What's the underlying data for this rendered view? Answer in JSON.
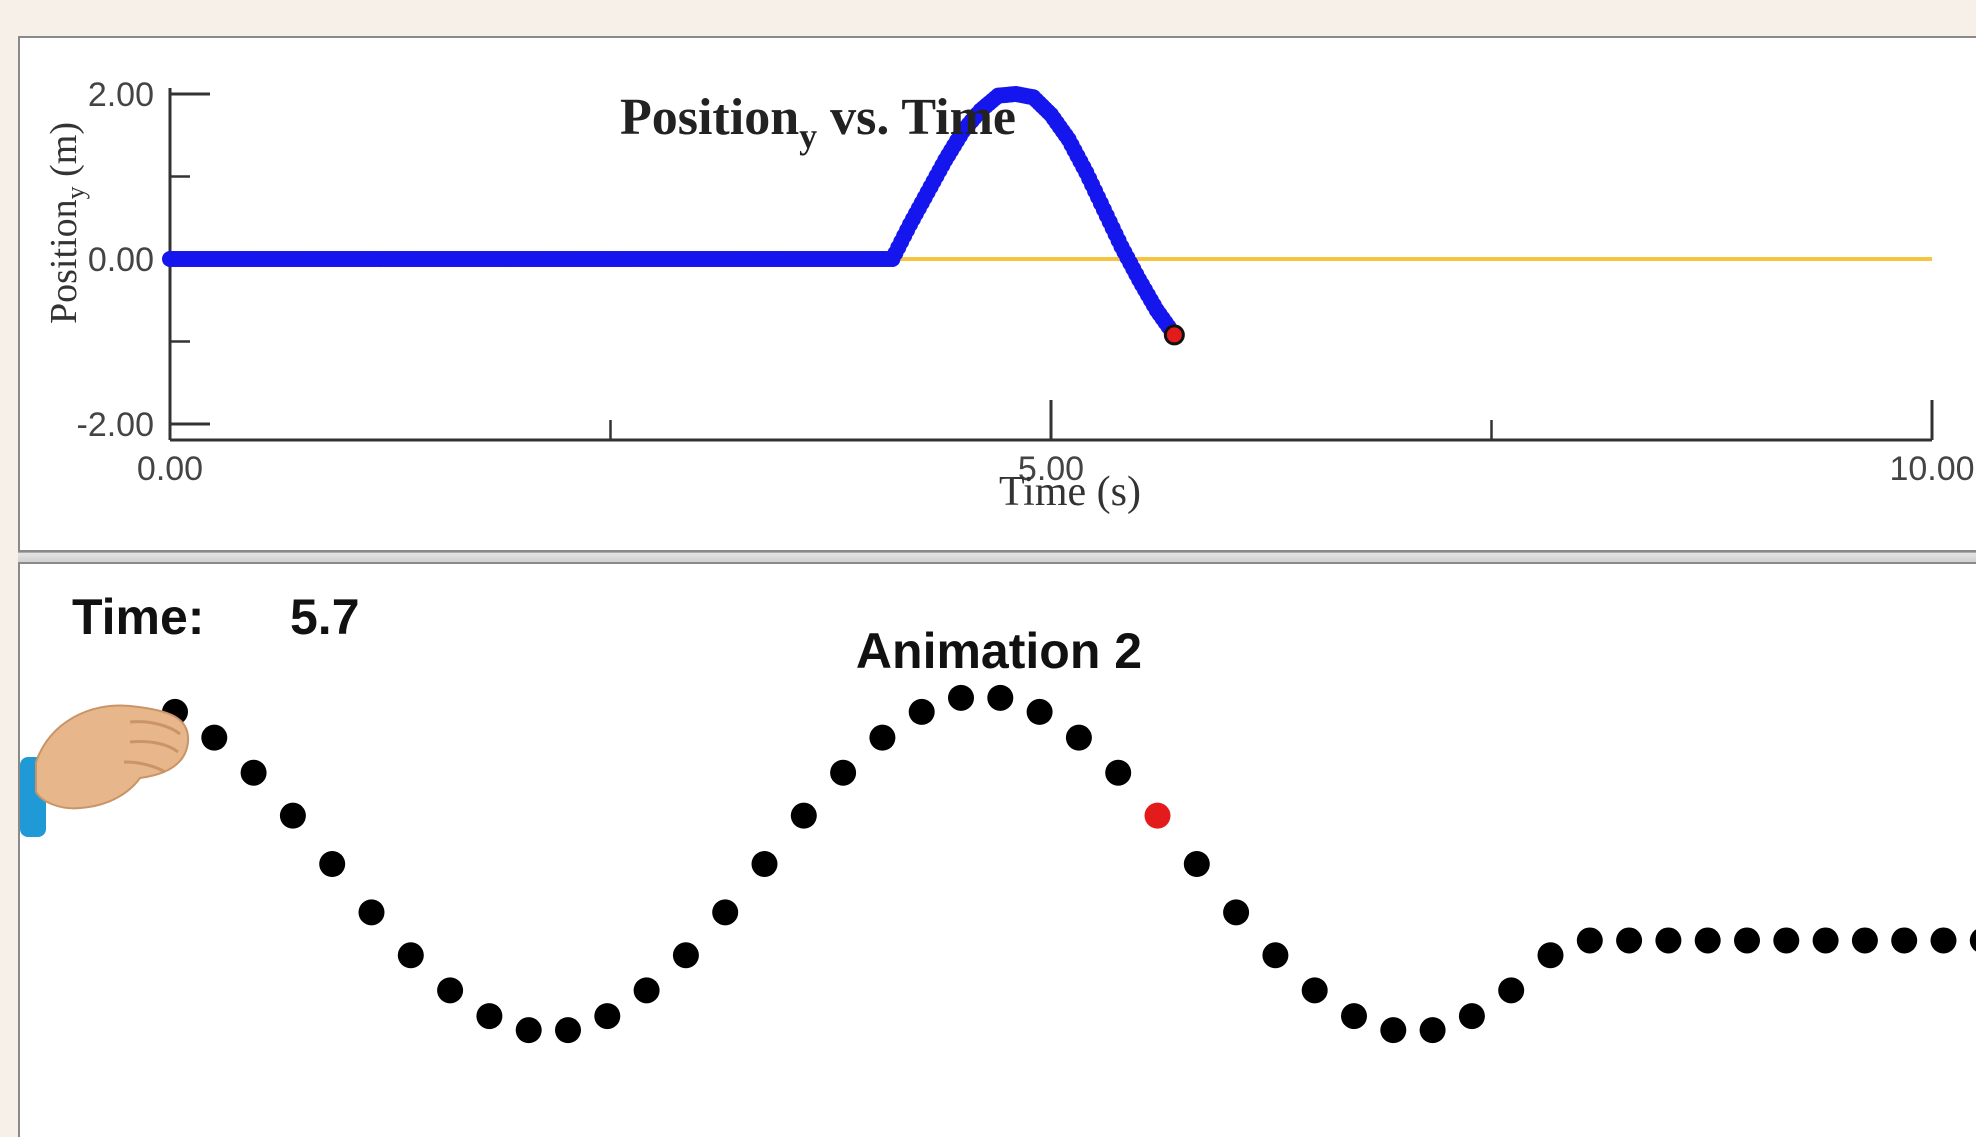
{
  "graph": {
    "title_main": "Position",
    "title_sub": "y",
    "title_rest": " vs. Time",
    "ylabel_main": "Position",
    "ylabel_sub": "y",
    "ylabel_rest": " (m)",
    "xlabel": "Time (s)"
  },
  "animation": {
    "time_label": "Time:",
    "time_value": "5.7",
    "title": "Animation 2"
  },
  "colors": {
    "trace": "#1515ee",
    "reference_line": "#f5c542",
    "marker": "#e31b1b",
    "bead": "#000000"
  },
  "chart_data": {
    "type": "scatter",
    "xlabel": "Time (s)",
    "ylabel": "Positiony (m)",
    "xlim": [
      0,
      10
    ],
    "ylim": [
      -2,
      2
    ],
    "xticks_major": [
      0,
      5,
      10
    ],
    "xtick_labels": [
      "0.00",
      "5.00",
      "10.00"
    ],
    "xticks_minor": [
      2.5,
      7.5
    ],
    "yticks_major": [
      -2,
      0,
      2
    ],
    "ytick_labels": [
      "-2.00",
      "0.00",
      "2.00"
    ],
    "yticks_minor": [
      -1,
      1
    ],
    "reference_line_y": 0,
    "series": [
      {
        "x": [
          0.0,
          0.1,
          0.2,
          0.3,
          0.4,
          0.5,
          0.6,
          0.7,
          0.8,
          0.9,
          1.0,
          1.1,
          1.2,
          1.3,
          1.4,
          1.5,
          1.6,
          1.7,
          1.8,
          1.9,
          2.0,
          2.1,
          2.2,
          2.3,
          2.4,
          2.5,
          2.6,
          2.7,
          2.8,
          2.9,
          3.0,
          3.1,
          3.2,
          3.3,
          3.4,
          3.5,
          3.6,
          3.7,
          3.8,
          3.9,
          4.0,
          4.1,
          4.2,
          4.3,
          4.4,
          4.5,
          4.6,
          4.7,
          4.8,
          4.9,
          5.0,
          5.1,
          5.2,
          5.3,
          5.4,
          5.5,
          5.6,
          5.7
        ],
        "y": [
          0,
          0,
          0,
          0,
          0,
          0,
          0,
          0,
          0,
          0,
          0,
          0,
          0,
          0,
          0,
          0,
          0,
          0,
          0,
          0,
          0,
          0,
          0,
          0,
          0,
          0,
          0,
          0,
          0,
          0,
          0,
          0,
          0,
          0,
          0,
          0,
          0,
          0,
          0,
          0,
          0,
          0,
          0.42,
          0.81,
          1.2,
          1.55,
          1.8,
          1.98,
          2.0,
          1.96,
          1.75,
          1.45,
          1.05,
          0.6,
          0.15,
          -0.25,
          -0.62,
          -0.92
        ]
      }
    ],
    "current_point": {
      "x": 5.7,
      "y": -0.92
    }
  },
  "wave_data": {
    "current_bead_index": 25,
    "bead_offsets": [
      1.95,
      1.62,
      1.17,
      0.62,
      0.0,
      -0.62,
      -1.17,
      -1.62,
      -1.95,
      -2.13,
      -2.13,
      -1.95,
      -1.62,
      -1.17,
      -0.62,
      0.0,
      0.62,
      1.17,
      1.62,
      1.95,
      2.13,
      2.13,
      1.95,
      1.62,
      1.17,
      0.62,
      0.0,
      -0.62,
      -1.17,
      -1.62,
      -1.95,
      -2.13,
      -2.13,
      -1.95,
      -1.62,
      -1.17,
      -0.98,
      -0.98,
      -0.98,
      -0.98,
      -0.98,
      -0.98,
      -0.98,
      -0.98,
      -0.98,
      -0.98,
      -0.98
    ]
  }
}
